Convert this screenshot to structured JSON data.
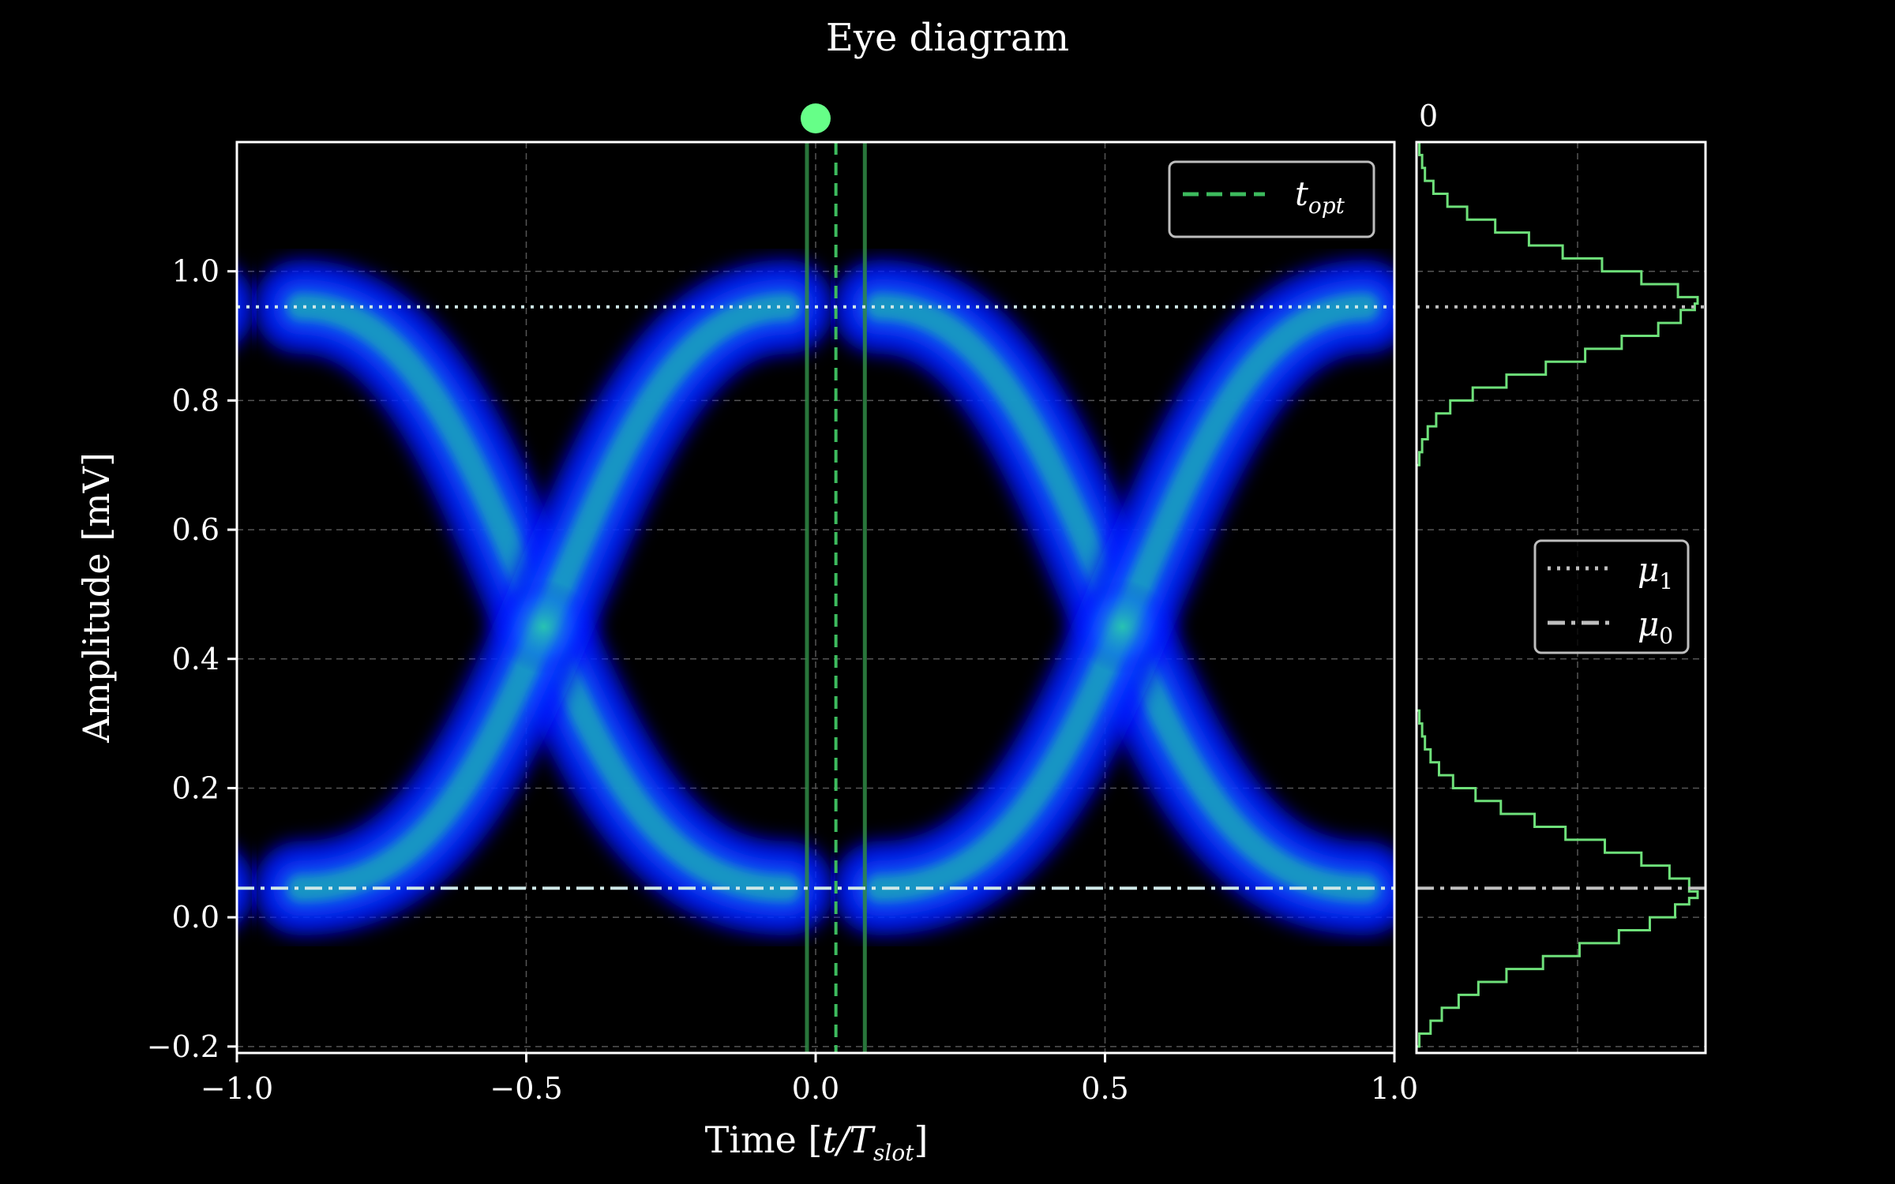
{
  "chart_data": [
    {
      "type": "heatmap",
      "title": "Eye diagram",
      "xlabel": "Time [t/T_slot]",
      "xlabel_parts": {
        "main": "Time [",
        "var": "t/T",
        "sub": "slot",
        "close": "]"
      },
      "ylabel": "Amplitude [mV]",
      "xlim": [
        -1.0,
        1.0
      ],
      "ylim": [
        -0.21,
        1.2
      ],
      "xticks": [
        -1.0,
        -0.5,
        0.0,
        0.5,
        1.0
      ],
      "xtick_labels": [
        "−1.0",
        "−0.5",
        "0.0",
        "0.5",
        "1.0"
      ],
      "yticks": [
        -0.2,
        0.0,
        0.2,
        0.4,
        0.6,
        0.8,
        1.0
      ],
      "ytick_labels": [
        "−0.2",
        "0.0",
        "0.2",
        "0.4",
        "0.6",
        "0.8",
        "1.0"
      ],
      "grid": true,
      "mu1": 0.945,
      "mu0": 0.045,
      "t_opt": 0.035,
      "window_lines": [
        -0.015,
        0.085
      ],
      "crossing_points": [
        {
          "x": -0.47,
          "y": 0.45
        },
        {
          "x": 0.53,
          "y": 0.45
        }
      ],
      "sampling_marker_x": 0.0,
      "legend": {
        "placement": "top-right",
        "entries": [
          {
            "label_main": "t",
            "label_sub": "opt",
            "style": "dashed",
            "color": "#3dbb5e"
          }
        ]
      },
      "colors": {
        "background": "#000000",
        "density_low": "#0000ff",
        "density_high": "#33e6a0",
        "mu_line": "#cfe8e8",
        "t_opt": "#3dbb5e",
        "window": "#2f8a45",
        "marker": "#66ff88"
      }
    },
    {
      "type": "line",
      "orientation": "horizontal-histogram",
      "title": "",
      "top_label": "0",
      "ylim": [
        -0.21,
        1.2
      ],
      "grid": true,
      "series": [
        {
          "name": "histogram",
          "color": "#6ee07a",
          "bins_y": [
            -0.2,
            -0.18,
            -0.16,
            -0.14,
            -0.12,
            -0.1,
            -0.08,
            -0.06,
            -0.04,
            -0.02,
            0.0,
            0.02,
            0.03,
            0.04,
            0.06,
            0.08,
            0.1,
            0.12,
            0.14,
            0.16,
            0.18,
            0.2,
            0.22,
            0.24,
            0.26,
            0.28,
            0.3
          ],
          "density": [
            0.01,
            0.05,
            0.09,
            0.15,
            0.22,
            0.32,
            0.45,
            0.58,
            0.72,
            0.83,
            0.92,
            0.97,
            1.0,
            0.97,
            0.9,
            0.8,
            0.67,
            0.53,
            0.42,
            0.3,
            0.21,
            0.13,
            0.08,
            0.05,
            0.03,
            0.02,
            0.01
          ]
        },
        {
          "name": "histogram-upper",
          "color": "#6ee07a",
          "bins_y": [
            0.7,
            0.72,
            0.74,
            0.76,
            0.78,
            0.8,
            0.82,
            0.84,
            0.86,
            0.88,
            0.9,
            0.92,
            0.94,
            0.95,
            0.96,
            0.98,
            1.0,
            1.02,
            1.04,
            1.06,
            1.08,
            1.1,
            1.12,
            1.14,
            1.16,
            1.18
          ],
          "density": [
            0.01,
            0.02,
            0.04,
            0.07,
            0.12,
            0.2,
            0.32,
            0.46,
            0.6,
            0.73,
            0.86,
            0.94,
            0.99,
            1.0,
            0.93,
            0.8,
            0.66,
            0.52,
            0.4,
            0.28,
            0.18,
            0.11,
            0.06,
            0.03,
            0.02,
            0.01
          ]
        }
      ],
      "legend": {
        "placement": "center-right",
        "entries": [
          {
            "label_main": "μ",
            "label_sub": "1",
            "style": "dotted",
            "color": "#bfbfbf"
          },
          {
            "label_main": "μ",
            "label_sub": "0",
            "style": "dashdot",
            "color": "#bfbfbf"
          }
        ]
      }
    }
  ]
}
